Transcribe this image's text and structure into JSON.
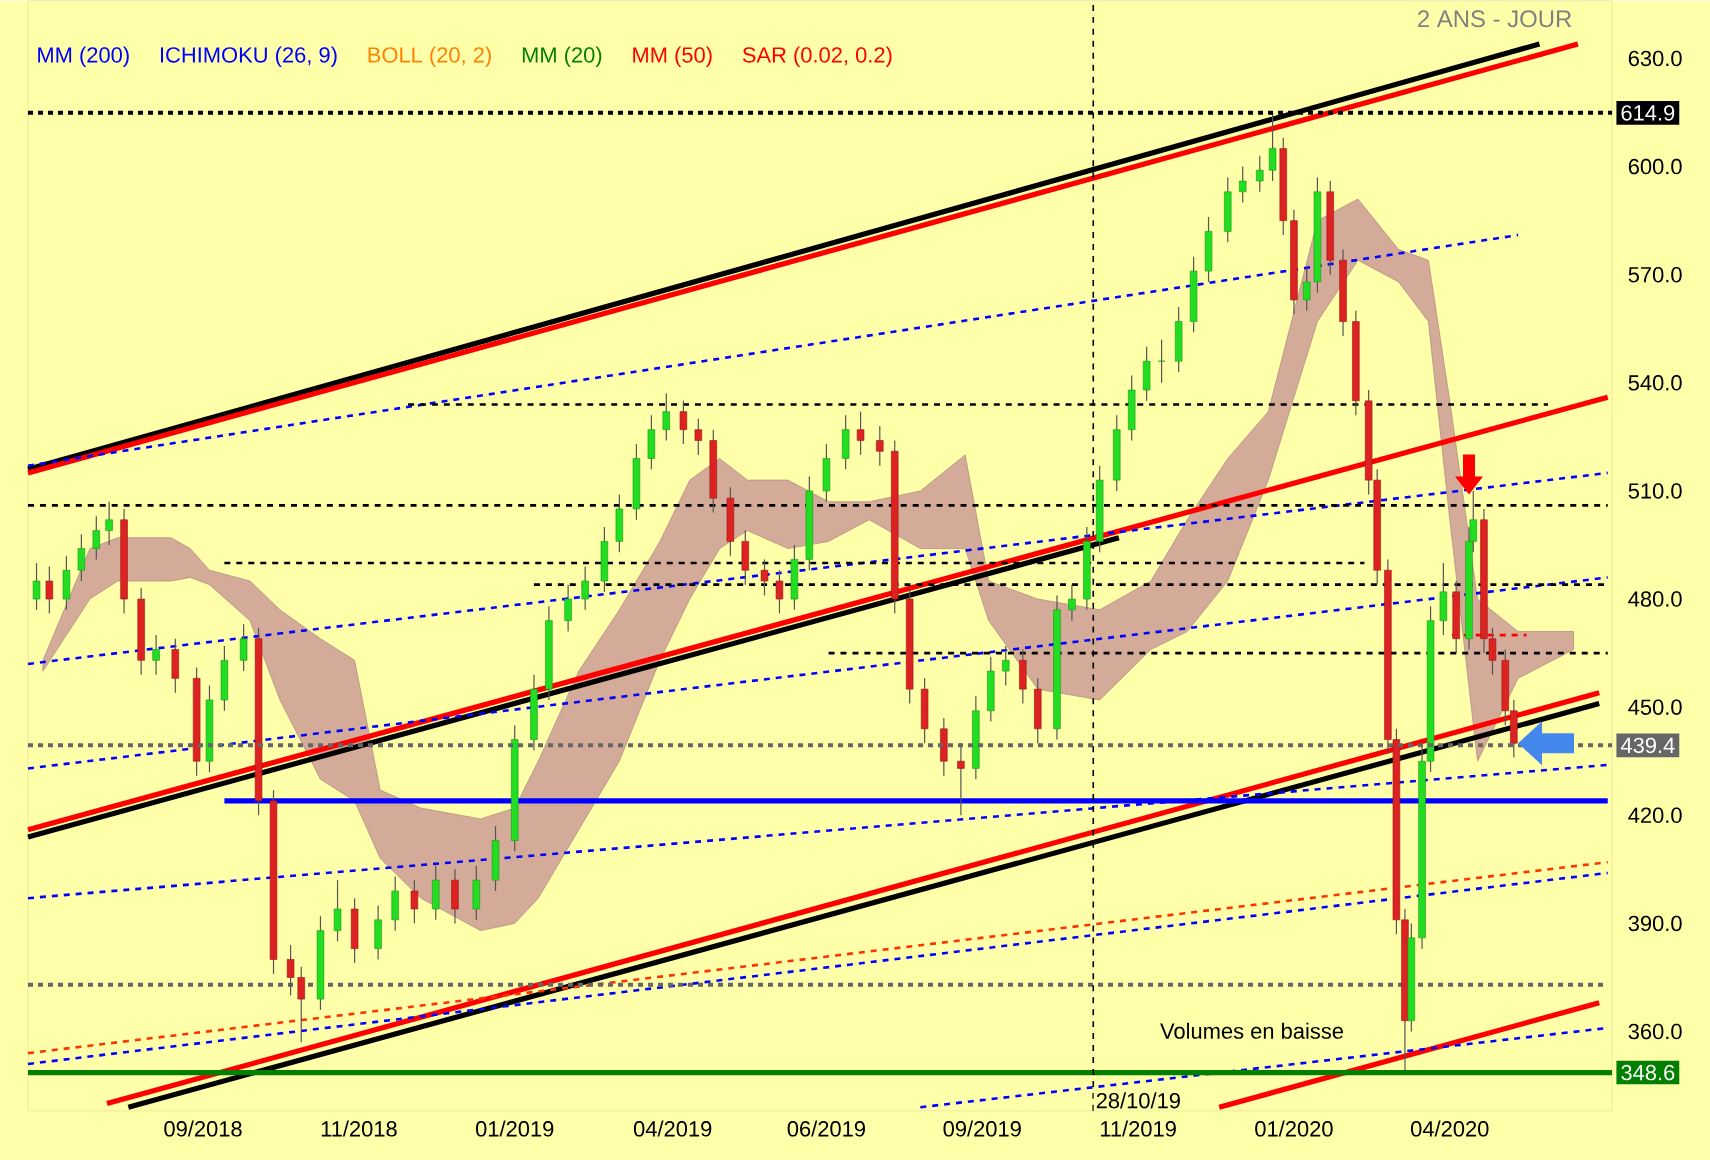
{
  "chart_data": {
    "type": "candlestick",
    "annotations": [
      "2 ANS - JOUR",
      "MM (200)",
      "ICHIMOKU (26, 9)",
      "BOLL (20, 2)",
      "MM (20)",
      "MM (50)",
      "SAR (0.02, 0.2)",
      "Volumes en baisse"
    ],
    "xlim": [
      "2018-06-16",
      "2020-06-27"
    ],
    "ylim": [
      338,
      646
    ],
    "xticks": [
      {
        "value": "2018-09-06",
        "label": "09/2018"
      },
      {
        "value": "2018-11-18",
        "label": "11/2018"
      },
      {
        "value": "2019-01-30",
        "label": "01/2019"
      },
      {
        "value": "2019-04-14",
        "label": "04/2019"
      },
      {
        "value": "2019-06-25",
        "label": "06/2019"
      },
      {
        "value": "2019-09-06",
        "label": "09/2019"
      },
      {
        "value": "2019-11-18",
        "label": "11/2019"
      },
      {
        "value": "2020-01-30",
        "label": "01/2020"
      },
      {
        "value": "2020-04-12",
        "label": "04/2020"
      }
    ],
    "yticks": [
      {
        "value": 360,
        "label": "360.0"
      },
      {
        "value": 390,
        "label": "390.0"
      },
      {
        "value": 420,
        "label": "420.0"
      },
      {
        "value": 450,
        "label": "450.0"
      },
      {
        "value": 480,
        "label": "480.0"
      },
      {
        "value": 510,
        "label": "510.0"
      },
      {
        "value": 540,
        "label": "540.0"
      },
      {
        "value": 570,
        "label": "570.0"
      },
      {
        "value": 600,
        "label": "600.0"
      },
      {
        "value": 630,
        "label": "630.0"
      }
    ],
    "x": [
      "2018-06-20",
      "2018-06-26",
      "2018-07-04",
      "2018-07-11",
      "2018-07-18",
      "2018-07-24",
      "2018-07-31",
      "2018-08-08",
      "2018-08-15",
      "2018-08-24",
      "2018-09-03",
      "2018-09-09",
      "2018-09-16",
      "2018-09-25",
      "2018-10-02",
      "2018-10-09",
      "2018-10-17",
      "2018-10-22",
      "2018-10-31",
      "2018-11-08",
      "2018-11-16",
      "2018-11-27",
      "2018-12-05",
      "2018-12-14",
      "2018-12-24",
      "2019-01-02",
      "2019-01-12",
      "2019-01-21",
      "2019-01-30",
      "2019-02-08",
      "2019-02-15",
      "2019-02-24",
      "2019-03-04",
      "2019-03-13",
      "2019-03-20",
      "2019-03-28",
      "2019-04-04",
      "2019-04-11",
      "2019-04-19",
      "2019-04-26",
      "2019-05-03",
      "2019-05-11",
      "2019-05-18",
      "2019-05-27",
      "2019-06-03",
      "2019-06-10",
      "2019-06-17",
      "2019-06-25",
      "2019-07-04",
      "2019-07-11",
      "2019-07-20",
      "2019-07-27",
      "2019-08-03",
      "2019-08-10",
      "2019-08-19",
      "2019-08-27",
      "2019-09-03",
      "2019-09-10",
      "2019-09-17",
      "2019-09-25",
      "2019-10-02",
      "2019-10-11",
      "2019-10-18",
      "2019-10-25",
      "2019-10-31",
      "2019-11-08",
      "2019-11-15",
      "2019-11-22",
      "2019-11-29",
      "2019-12-07",
      "2019-12-14",
      "2019-12-21",
      "2019-12-30",
      "2020-01-06",
      "2020-01-14",
      "2020-01-20",
      "2020-01-25",
      "2020-01-30",
      "2020-02-05",
      "2020-02-10",
      "2020-02-16",
      "2020-02-22",
      "2020-02-28",
      "2020-03-05",
      "2020-03-09",
      "2020-03-14",
      "2020-03-18",
      "2020-03-22",
      "2020-03-25",
      "2020-03-30",
      "2020-04-03",
      "2020-04-09",
      "2020-04-15",
      "2020-04-21",
      "2020-04-23",
      "2020-04-28",
      "2020-05-02",
      "2020-05-08",
      "2020-05-12"
    ],
    "ohlc": [
      [
        480,
        490,
        477,
        485
      ],
      [
        485,
        489,
        476,
        480
      ],
      [
        480,
        492,
        477,
        488
      ],
      [
        488,
        498,
        485,
        494
      ],
      [
        494,
        503,
        491,
        499
      ],
      [
        499,
        507,
        495,
        502
      ],
      [
        502,
        505,
        476,
        480
      ],
      [
        480,
        483,
        459,
        463
      ],
      [
        463,
        470,
        459,
        466
      ],
      [
        466,
        469,
        454,
        458
      ],
      [
        458,
        461,
        431,
        435
      ],
      [
        435,
        456,
        432,
        452
      ],
      [
        452,
        467,
        449,
        463
      ],
      [
        463,
        473,
        460,
        469
      ],
      [
        469,
        472,
        420,
        424
      ],
      [
        424,
        427,
        376,
        380
      ],
      [
        380,
        384,
        370,
        375
      ],
      [
        375,
        378,
        357,
        369
      ],
      [
        369,
        392,
        366,
        388
      ],
      [
        388,
        402,
        385,
        394
      ],
      [
        394,
        397,
        379,
        383
      ],
      [
        383,
        395,
        380,
        391
      ],
      [
        391,
        403,
        388,
        399
      ],
      [
        399,
        402,
        390,
        394
      ],
      [
        394,
        406,
        391,
        402
      ],
      [
        402,
        405,
        390,
        394
      ],
      [
        394,
        406,
        391,
        402
      ],
      [
        402,
        417,
        399,
        413
      ],
      [
        413,
        445,
        410,
        441
      ],
      [
        441,
        459,
        438,
        455
      ],
      [
        455,
        478,
        452,
        474
      ],
      [
        474,
        484,
        471,
        480
      ],
      [
        480,
        489,
        477,
        485
      ],
      [
        485,
        500,
        482,
        496
      ],
      [
        496,
        509,
        493,
        505
      ],
      [
        505,
        523,
        502,
        519
      ],
      [
        519,
        531,
        516,
        527
      ],
      [
        527,
        537,
        524,
        532
      ],
      [
        532,
        535,
        523,
        527
      ],
      [
        527,
        530,
        520,
        524
      ],
      [
        524,
        527,
        504,
        508
      ],
      [
        508,
        511,
        492,
        496
      ],
      [
        496,
        499,
        484,
        488
      ],
      [
        488,
        491,
        481,
        485
      ],
      [
        485,
        488,
        476,
        480
      ],
      [
        480,
        495,
        477,
        491
      ],
      [
        491,
        514,
        488,
        510
      ],
      [
        510,
        523,
        507,
        519
      ],
      [
        519,
        531,
        516,
        527
      ],
      [
        527,
        532,
        520,
        524
      ],
      [
        524,
        528,
        517,
        521
      ],
      [
        521,
        524,
        476,
        480
      ],
      [
        480,
        483,
        451,
        455
      ],
      [
        455,
        458,
        440,
        444
      ],
      [
        444,
        447,
        431,
        435
      ],
      [
        435,
        440,
        420,
        433
      ],
      [
        433,
        453,
        430,
        449
      ],
      [
        449,
        464,
        446,
        460
      ],
      [
        460,
        467,
        456,
        463
      ],
      [
        463,
        466,
        451,
        455
      ],
      [
        455,
        458,
        440,
        444
      ],
      [
        444,
        481,
        441,
        477
      ],
      [
        477,
        484,
        474,
        480
      ],
      [
        480,
        500,
        477,
        496
      ],
      [
        496,
        517,
        493,
        513
      ],
      [
        513,
        531,
        510,
        527
      ],
      [
        527,
        542,
        524,
        538
      ],
      [
        538,
        550,
        535,
        546
      ],
      [
        546,
        552,
        540,
        546
      ],
      [
        546,
        561,
        543,
        557
      ],
      [
        557,
        575,
        554,
        571
      ],
      [
        571,
        586,
        568,
        582
      ],
      [
        582,
        597,
        579,
        593
      ],
      [
        593,
        600,
        590,
        596
      ],
      [
        596,
        603,
        593,
        599
      ],
      [
        599,
        614.9,
        596,
        605
      ],
      [
        605,
        608,
        581,
        585
      ],
      [
        585,
        588,
        559,
        563
      ],
      [
        563,
        572,
        560,
        568
      ],
      [
        568,
        597,
        565,
        593
      ],
      [
        593,
        596,
        570,
        574
      ],
      [
        574,
        577,
        553,
        557
      ],
      [
        557,
        560,
        531,
        535
      ],
      [
        535,
        538,
        509,
        513
      ],
      [
        513,
        516,
        484,
        488
      ],
      [
        488,
        491,
        437,
        441
      ],
      [
        441,
        444,
        387,
        391
      ],
      [
        391,
        394,
        348.6,
        363
      ],
      [
        363,
        390,
        360,
        386
      ],
      [
        386,
        439,
        383,
        435
      ],
      [
        435,
        478,
        432,
        474
      ],
      [
        474,
        490,
        470,
        482
      ],
      [
        482,
        485,
        465,
        469
      ],
      [
        469,
        500,
        466,
        496
      ],
      [
        496,
        510,
        493,
        502
      ],
      [
        502,
        505,
        465,
        469
      ],
      [
        469,
        472,
        459,
        463
      ],
      [
        463,
        466,
        445,
        449
      ],
      [
        449,
        452,
        436,
        440
      ]
    ],
    "series": [
      {
        "type": "area",
        "color": "#d4aa98",
        "x": [
          "2018-06-23",
          "2018-07-15",
          "2018-07-28",
          "2018-08-22",
          "2018-08-31",
          "2018-09-09",
          "2018-09-28",
          "2018-10-12",
          "2018-10-31",
          "2018-11-16",
          "2018-11-28",
          "2018-12-17",
          "2019-01-14",
          "2019-01-30",
          "2019-02-10",
          "2019-03-01",
          "2019-03-20",
          "2019-04-08",
          "2019-04-22",
          "2019-05-06",
          "2019-05-19",
          "2019-06-07",
          "2019-06-26",
          "2019-07-15",
          "2019-08-08",
          "2019-08-29",
          "2019-09-09",
          "2019-10-02",
          "2019-10-31",
          "2019-11-24",
          "2019-12-11",
          "2019-12-30",
          "2020-01-18",
          "2020-02-10",
          "2020-02-29",
          "2020-03-19",
          "2020-04-02",
          "2020-04-12",
          "2020-04-25",
          "2020-05-14",
          "2020-06-09"
        ],
        "values": [
          null,
          null,
          null,
          null,
          null,
          null,
          null,
          null,
          null,
          null,
          null,
          null,
          null,
          null,
          null,
          null,
          null,
          null,
          null,
          null,
          null,
          null,
          null,
          null,
          null,
          null,
          null,
          null,
          null,
          null,
          null,
          null,
          null,
          null,
          null,
          null,
          null,
          null,
          null,
          null,
          null
        ],
        "upper": [
          463,
          494,
          497,
          497,
          494,
          488,
          485,
          477,
          469,
          463,
          427,
          422,
          419,
          422,
          435,
          460,
          477,
          496,
          513,
          519,
          513,
          513,
          507,
          507,
          510,
          520,
          485,
          480,
          477,
          485,
          502,
          519,
          532,
          585,
          591,
          577,
          574,
          535,
          480,
          471,
          471
        ],
        "lower": [
          460,
          480,
          485,
          485,
          486,
          484,
          474,
          452,
          430,
          424,
          408,
          397,
          388,
          390,
          397,
          416,
          435,
          463,
          480,
          494,
          499,
          494,
          496,
          502,
          494,
          494,
          474,
          455,
          452,
          466,
          471,
          485,
          513,
          557,
          574,
          568,
          557,
          502,
          435,
          458,
          466
        ]
      },
      {
        "type": "line",
        "color": "#000000",
        "line_style": "solid",
        "x": [
          "2018-06-16",
          "2020-05-24"
        ],
        "values": [
          516,
          634
        ]
      },
      {
        "type": "line",
        "color": "#ff0000",
        "line_style": "solid",
        "x": [
          "2018-06-16",
          "2020-06-11"
        ],
        "values": [
          515,
          634
        ]
      },
      {
        "type": "line",
        "color": "#000000",
        "line_style": "solid",
        "x": [
          "2018-06-16",
          "2019-11-09"
        ],
        "values": [
          414,
          497
        ]
      },
      {
        "type": "line",
        "color": "#ff0000",
        "line_style": "solid",
        "x": [
          "2018-06-16",
          "2020-06-25"
        ],
        "values": [
          416,
          536
        ]
      },
      {
        "type": "line",
        "color": "#000000",
        "line_style": "solid",
        "x": [
          "2018-08-02",
          "2020-06-21"
        ],
        "values": [
          339,
          451
        ]
      },
      {
        "type": "line",
        "color": "#ff0000",
        "line_style": "solid",
        "x": [
          "2018-07-23",
          "2020-06-21"
        ],
        "values": [
          340,
          454
        ]
      },
      {
        "type": "line",
        "color": "#ff0000",
        "line_style": "solid",
        "x": [
          "2019-12-26",
          "2020-06-21"
        ],
        "values": [
          339,
          368
        ]
      },
      {
        "type": "line",
        "color": "#0000ff",
        "line_style": "dashed",
        "x": [
          "2018-06-16",
          "2020-06-25"
        ],
        "values": [
          397,
          434
        ]
      },
      {
        "type": "line",
        "color": "#0000ff",
        "line_style": "dashed",
        "x": [
          "2019-08-08",
          "2020-06-25"
        ],
        "values": [
          339,
          361
        ]
      },
      {
        "type": "line",
        "color": "#0000ff",
        "line_style": "dashed",
        "x": [
          "2018-06-16",
          "2020-05-14"
        ],
        "values": [
          517,
          581
        ]
      },
      {
        "type": "line",
        "color": "#0000ff",
        "line_style": "dashed",
        "x": [
          "2018-06-16",
          "2020-06-25"
        ],
        "values": [
          462,
          515
        ]
      },
      {
        "type": "line",
        "color": "#0000ff",
        "line_style": "dashed",
        "x": [
          "2018-06-16",
          "2020-06-25"
        ],
        "values": [
          433,
          486
        ]
      },
      {
        "type": "line",
        "color": "#0000ff",
        "line_style": "dashed",
        "x": [
          "2018-06-16",
          "2020-06-25"
        ],
        "values": [
          351,
          404
        ]
      },
      {
        "type": "line",
        "color": "#ff3300",
        "line_style": "dashed",
        "x": [
          "2018-06-16",
          "2020-06-25"
        ],
        "values": [
          354,
          407
        ]
      },
      {
        "type": "line",
        "color": "#0000ff",
        "line_style": "solid",
        "x": [
          "2018-09-16",
          "2020-06-25"
        ],
        "values": [
          424,
          424
        ]
      },
      {
        "type": "line",
        "color": "#000000",
        "line_style": "dashed",
        "x": [
          "2018-12-11",
          "2020-05-28"
        ],
        "values": [
          534,
          534
        ]
      },
      {
        "type": "line",
        "color": "#000000",
        "line_style": "dashed",
        "x": [
          "2018-06-16",
          "2020-06-25"
        ],
        "values": [
          506,
          506
        ]
      },
      {
        "type": "line",
        "color": "#000000",
        "line_style": "dashed",
        "x": [
          "2018-09-16",
          "2020-03-03"
        ],
        "values": [
          490,
          490
        ]
      },
      {
        "type": "line",
        "color": "#000000",
        "line_style": "dashed",
        "x": [
          "2019-02-08",
          "2020-06-25"
        ],
        "values": [
          484,
          484
        ]
      },
      {
        "type": "line",
        "color": "#000000",
        "line_style": "dashed",
        "x": [
          "2019-06-26",
          "2020-06-25"
        ],
        "values": [
          465,
          465
        ]
      },
      {
        "type": "line",
        "color": "#666666",
        "line_style": "dotted",
        "x": [
          "2018-06-16",
          "2020-06-25"
        ],
        "values": [
          373,
          373
        ]
      },
      {
        "type": "line",
        "color": "#ff0000",
        "line_style": "dashed",
        "x": [
          "2020-04-13",
          "2020-05-18"
        ],
        "values": [
          470,
          470
        ]
      }
    ],
    "ref_lines": [
      {
        "axis": "y",
        "value": 614.9,
        "label": "614.9",
        "color": "#000000",
        "line_style": "dotted"
      },
      {
        "axis": "y",
        "value": 439.4,
        "label": "439.4",
        "color": "#666666",
        "line_style": "dotted"
      },
      {
        "axis": "y",
        "value": 348.6,
        "label": "348.6",
        "color": "#007f00",
        "line_style": "solid"
      },
      {
        "axis": "x",
        "value": "2019-10-28",
        "label": "28/10/19",
        "color": "#000000",
        "line_style": "dashed"
      }
    ]
  }
}
